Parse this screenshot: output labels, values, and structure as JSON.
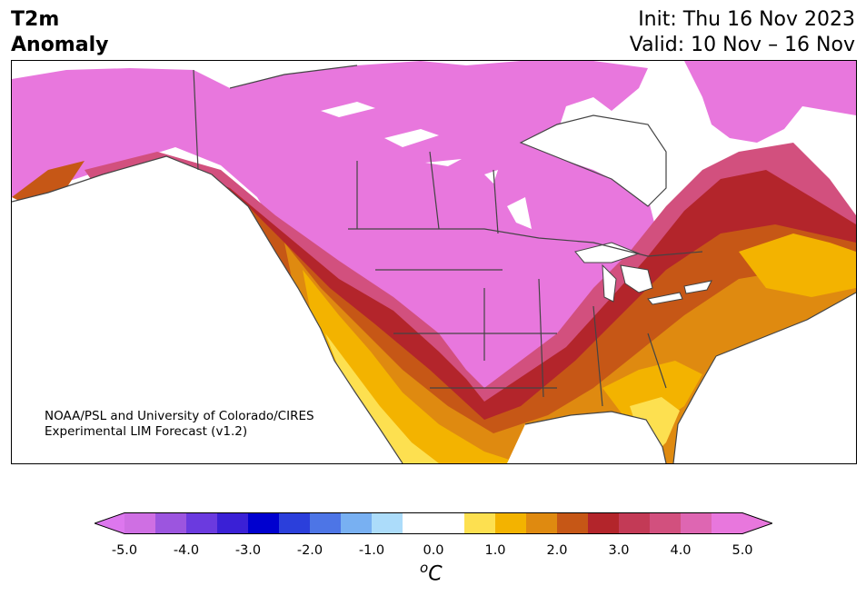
{
  "header": {
    "title_line1": "T2m",
    "title_line2": "Anomaly",
    "init": "Init: Thu 16 Nov 2023",
    "valid": "Valid: 10 Nov – 16 Nov"
  },
  "credit": {
    "line1": "NOAA/PSL and University of Colorado/CIRES",
    "line2": "Experimental LIM Forecast (v1.2)"
  },
  "colorbar": {
    "unit_base": "C",
    "unit_sup": "o",
    "range": [
      -5.0,
      5.0
    ],
    "ticks": [
      "-5.0",
      "-4.0",
      "-3.0",
      "-2.0",
      "-1.0",
      "0.0",
      "1.0",
      "2.0",
      "3.0",
      "4.0",
      "5.0"
    ],
    "low_extend_color": "#dd77ee",
    "high_extend_color": "#e877dd",
    "bins": [
      {
        "from": -5.0,
        "to": -4.5,
        "color": "#cf6fe3"
      },
      {
        "from": -4.5,
        "to": -4.0,
        "color": "#9c55df"
      },
      {
        "from": -4.0,
        "to": -3.5,
        "color": "#6b3adf"
      },
      {
        "from": -3.5,
        "to": -3.0,
        "color": "#3a20d6"
      },
      {
        "from": -3.0,
        "to": -2.5,
        "color": "#0000cf"
      },
      {
        "from": -2.5,
        "to": -2.0,
        "color": "#2b3fdb"
      },
      {
        "from": -2.0,
        "to": -1.5,
        "color": "#4d75e6"
      },
      {
        "from": -1.5,
        "to": -1.0,
        "color": "#78b0f2"
      },
      {
        "from": -1.0,
        "to": -0.5,
        "color": "#acdcfa"
      },
      {
        "from": -0.5,
        "to": 0.5,
        "color": "#ffffff"
      },
      {
        "from": 0.5,
        "to": 1.0,
        "color": "#fde050"
      },
      {
        "from": 1.0,
        "to": 1.5,
        "color": "#f3b300"
      },
      {
        "from": 1.5,
        "to": 2.0,
        "color": "#df8a10"
      },
      {
        "from": 2.0,
        "to": 2.5,
        "color": "#c65716"
      },
      {
        "from": 2.5,
        "to": 3.0,
        "color": "#b3252b"
      },
      {
        "from": 3.0,
        "to": 3.5,
        "color": "#c33a56"
      },
      {
        "from": 3.5,
        "to": 4.0,
        "color": "#d2507e"
      },
      {
        "from": 4.0,
        "to": 4.5,
        "color": "#de66b2"
      },
      {
        "from": 4.5,
        "to": 5.0,
        "color": "#e877dd"
      }
    ]
  },
  "map": {
    "region": "North America",
    "field": "2 m temperature anomaly",
    "colors": {
      "level_1": "#fde050",
      "level_1_5": "#f3b300",
      "level_2": "#df8a10",
      "level_2_5": "#c65716",
      "level_3": "#b3252b",
      "level_3_5": "#c33a56",
      "level_4": "#d2507e",
      "level_4_5": "#de66b2",
      "level_5": "#e877dd",
      "lines": "#444444"
    }
  }
}
